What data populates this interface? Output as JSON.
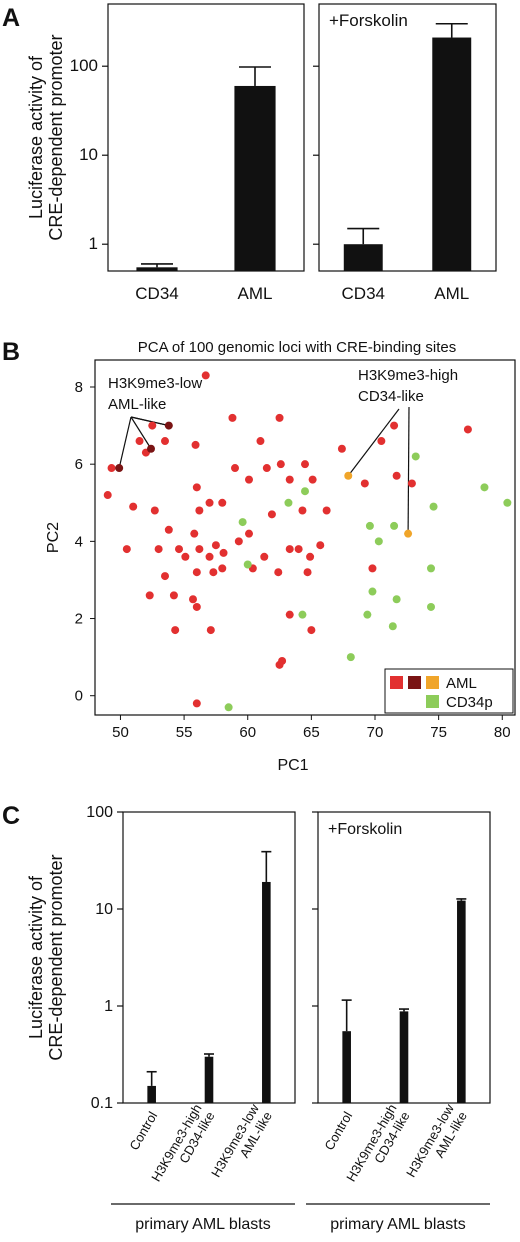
{
  "panels": {
    "a": "A",
    "b": "B",
    "c": "C"
  },
  "colors": {
    "bar": "#111111",
    "red": "#e23030",
    "darkred": "#7a1414",
    "orange": "#f0a52a",
    "green": "#8dcc5a"
  },
  "chart_data": [
    {
      "type": "bar",
      "id": "A-left",
      "title": "",
      "scale": "log",
      "ylabel": "Luciferase activity of CRE-dependent promoter",
      "ylim": [
        0.5,
        500
      ],
      "yticks": [
        1,
        10,
        100
      ],
      "ytick_labels": [
        "1",
        "10",
        "100"
      ],
      "categories": [
        "CD34",
        "AML"
      ],
      "values": [
        0.55,
        60
      ],
      "errors": [
        0.6,
        98
      ]
    },
    {
      "type": "bar",
      "id": "A-right",
      "title": "+Forskolin",
      "scale": "log",
      "ylim": [
        0.5,
        500
      ],
      "yticks": [
        1,
        10,
        100
      ],
      "categories": [
        "CD34",
        "AML"
      ],
      "values": [
        1.0,
        210
      ],
      "errors": [
        1.5,
        300
      ]
    },
    {
      "type": "scatter",
      "id": "B",
      "title": "PCA of 100 genomic loci with CRE-binding sites",
      "xlabel": "PC1",
      "ylabel": "PC2",
      "xlim": [
        48,
        81
      ],
      "ylim": [
        -0.5,
        8.7
      ],
      "xticks": [
        50,
        55,
        60,
        65,
        70,
        75,
        80
      ],
      "yticks": [
        0,
        2,
        4,
        6,
        8
      ],
      "legend": {
        "placement": "bottom-right",
        "entries": [
          "AML",
          "CD34p"
        ]
      },
      "annotations": [
        {
          "lines": [
            "H3K9me3-low",
            "AML-like"
          ],
          "placement": "top-left"
        },
        {
          "lines": [
            "H3K9me3-high",
            "CD34-like"
          ],
          "placement": "top-right"
        }
      ],
      "series": [
        {
          "name": "AML",
          "color": "#e23030",
          "points": [
            [
              56.7,
              8.3
            ],
            [
              58.8,
              7.2
            ],
            [
              62.5,
              7.2
            ],
            [
              52.5,
              7.0
            ],
            [
              53.5,
              6.6
            ],
            [
              55.9,
              6.5
            ],
            [
              61.0,
              6.6
            ],
            [
              67.4,
              6.4
            ],
            [
              70.5,
              6.6
            ],
            [
              71.5,
              7.0
            ],
            [
              77.3,
              6.9
            ],
            [
              49.3,
              5.9
            ],
            [
              51.5,
              6.6
            ],
            [
              52.0,
              6.3
            ],
            [
              59.0,
              5.9
            ],
            [
              61.5,
              5.9
            ],
            [
              62.6,
              6.0
            ],
            [
              64.5,
              6.0
            ],
            [
              49.0,
              5.2
            ],
            [
              51.0,
              4.9
            ],
            [
              52.7,
              4.8
            ],
            [
              56.0,
              5.4
            ],
            [
              57.0,
              5.0
            ],
            [
              58.0,
              5.0
            ],
            [
              60.1,
              5.6
            ],
            [
              63.3,
              5.6
            ],
            [
              65.1,
              5.6
            ],
            [
              69.2,
              5.5
            ],
            [
              71.7,
              5.7
            ],
            [
              72.9,
              5.5
            ],
            [
              55.8,
              4.2
            ],
            [
              56.2,
              4.8
            ],
            [
              60.1,
              4.2
            ],
            [
              61.9,
              4.7
            ],
            [
              64.3,
              4.8
            ],
            [
              66.2,
              4.8
            ],
            [
              50.5,
              3.8
            ],
            [
              53.0,
              3.8
            ],
            [
              53.8,
              4.3
            ],
            [
              54.6,
              3.8
            ],
            [
              55.1,
              3.6
            ],
            [
              56.2,
              3.8
            ],
            [
              57.0,
              3.6
            ],
            [
              57.5,
              3.9
            ],
            [
              58.1,
              3.7
            ],
            [
              59.3,
              4.0
            ],
            [
              60.4,
              3.3
            ],
            [
              61.3,
              3.6
            ],
            [
              63.3,
              3.8
            ],
            [
              64.0,
              3.8
            ],
            [
              64.9,
              3.6
            ],
            [
              65.7,
              3.9
            ],
            [
              52.3,
              2.6
            ],
            [
              53.5,
              3.1
            ],
            [
              54.2,
              2.6
            ],
            [
              55.7,
              2.5
            ],
            [
              56.0,
              3.2
            ],
            [
              57.3,
              3.2
            ],
            [
              58.0,
              3.3
            ],
            [
              62.4,
              3.2
            ],
            [
              64.7,
              3.2
            ],
            [
              69.8,
              3.3
            ],
            [
              54.3,
              1.7
            ],
            [
              56.0,
              2.3
            ],
            [
              57.1,
              1.7
            ],
            [
              63.3,
              2.1
            ],
            [
              62.5,
              0.8
            ],
            [
              62.7,
              0.9
            ],
            [
              65.0,
              1.7
            ],
            [
              56.0,
              -0.2
            ]
          ]
        },
        {
          "name": "AML (H3K9me3-low, AML-like)",
          "color": "#7a1414",
          "points": [
            [
              49.9,
              5.9
            ],
            [
              52.4,
              6.4
            ],
            [
              53.8,
              7.0
            ]
          ]
        },
        {
          "name": "AML (H3K9me3-high, CD34-like)",
          "color": "#f0a52a",
          "points": [
            [
              67.9,
              5.7
            ],
            [
              72.6,
              4.2
            ]
          ]
        },
        {
          "name": "CD34p",
          "color": "#8dcc5a",
          "points": [
            [
              63.2,
              5.0
            ],
            [
              64.5,
              5.3
            ],
            [
              73.2,
              6.2
            ],
            [
              78.6,
              5.4
            ],
            [
              80.4,
              5.0
            ],
            [
              59.6,
              4.5
            ],
            [
              69.6,
              4.4
            ],
            [
              71.5,
              4.4
            ],
            [
              74.6,
              4.9
            ],
            [
              60.0,
              3.4
            ],
            [
              70.3,
              4.0
            ],
            [
              74.4,
              3.3
            ],
            [
              69.8,
              2.7
            ],
            [
              71.7,
              2.5
            ],
            [
              74.4,
              2.3
            ],
            [
              64.3,
              2.1
            ],
            [
              69.4,
              2.1
            ],
            [
              71.4,
              1.8
            ],
            [
              68.1,
              1.0
            ],
            [
              58.5,
              -0.3
            ]
          ]
        }
      ]
    },
    {
      "type": "bar",
      "id": "C-left",
      "title": "",
      "scale": "log",
      "ylabel": "Luciferase activity of CRE-dependent promoter",
      "ylim": [
        0.1,
        100
      ],
      "yticks": [
        0.1,
        1,
        10,
        100
      ],
      "ytick_labels": [
        "0.1",
        "1",
        "10",
        "100"
      ],
      "categories": [
        "Control",
        "H3K9me3-high CD34-like",
        "H3K9me3-low AML-like"
      ],
      "category_lines": [
        [
          "Control"
        ],
        [
          "H3K9me3-high",
          "CD34-like"
        ],
        [
          "H3K9me3-low",
          "AML-like"
        ]
      ],
      "values": [
        0.15,
        0.3,
        19
      ],
      "errors": [
        0.21,
        0.32,
        39
      ],
      "group_label": "primary AML blasts"
    },
    {
      "type": "bar",
      "id": "C-right",
      "title": "+Forskolin",
      "scale": "log",
      "ylim": [
        0.1,
        100
      ],
      "yticks": [
        0.1,
        1,
        10,
        100
      ],
      "categories": [
        "Control",
        "H3K9me3-high CD34-like",
        "H3K9me3-low AML-like"
      ],
      "category_lines": [
        [
          "Control"
        ],
        [
          "H3K9me3-high",
          "CD34-like"
        ],
        [
          "H3K9me3-low",
          "AML-like"
        ]
      ],
      "values": [
        0.55,
        0.88,
        12.2
      ],
      "errors": [
        1.15,
        0.93,
        12.7
      ],
      "group_label": "primary AML blasts"
    }
  ]
}
